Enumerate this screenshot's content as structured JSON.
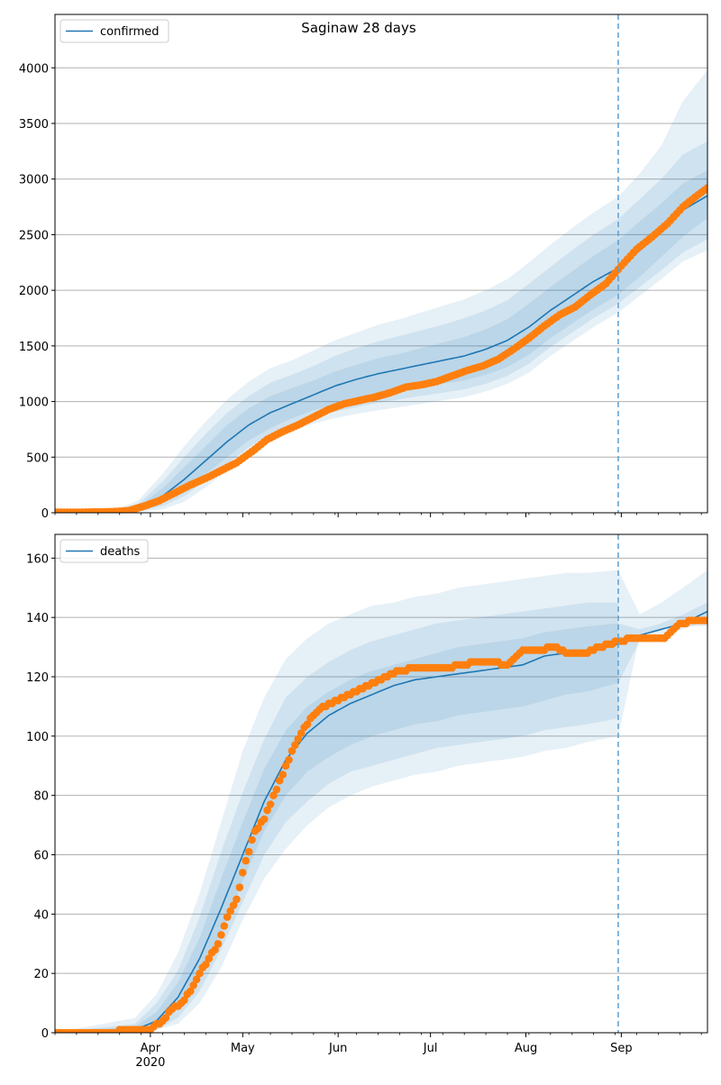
{
  "title": "Saginaw 28 days",
  "colors": {
    "model": "#1f77b4",
    "observed": "#ff7f0e",
    "band": "#1f77b4",
    "grid": "#b0b0b0",
    "forecast_line": "#5a9fd4"
  },
  "x_axis": {
    "range": [
      "2020-03-01",
      "2020-09-29"
    ],
    "month_ticks": [
      {
        "date": "2020-04-01",
        "label": "Apr"
      },
      {
        "date": "2020-05-01",
        "label": "May"
      },
      {
        "date": "2020-06-01",
        "label": "Jun"
      },
      {
        "date": "2020-07-01",
        "label": "Jul"
      },
      {
        "date": "2020-08-01",
        "label": "Aug"
      },
      {
        "date": "2020-09-01",
        "label": "Sep"
      }
    ],
    "year_label": "2020",
    "forecast_start": "2020-08-31"
  },
  "chart_data": [
    {
      "type": "line",
      "legend": "confirmed",
      "legend_position": "top-left",
      "grid": "horizontal",
      "ylim": [
        0,
        4480
      ],
      "yticks": [
        0,
        500,
        1000,
        1500,
        2000,
        2500,
        3000,
        3500,
        4000
      ],
      "model_dates": [
        "2020-03-01",
        "2020-03-20",
        "2020-03-28",
        "2020-04-05",
        "2020-04-12",
        "2020-04-19",
        "2020-04-26",
        "2020-05-03",
        "2020-05-10",
        "2020-05-17",
        "2020-05-24",
        "2020-05-31",
        "2020-06-07",
        "2020-06-14",
        "2020-06-21",
        "2020-06-28",
        "2020-07-05",
        "2020-07-12",
        "2020-07-19",
        "2020-07-26",
        "2020-08-02",
        "2020-08-09",
        "2020-08-16",
        "2020-08-23",
        "2020-08-31",
        "2020-09-07",
        "2020-09-14",
        "2020-09-21",
        "2020-09-29"
      ],
      "model": [
        0,
        5,
        40,
        150,
        300,
        470,
        640,
        790,
        900,
        980,
        1060,
        1140,
        1200,
        1250,
        1290,
        1330,
        1370,
        1410,
        1470,
        1550,
        1670,
        1820,
        1950,
        2080,
        2200,
        2360,
        2520,
        2720,
        2850
      ],
      "bands": [
        {
          "lower": [
            0,
            0,
            20,
            90,
            200,
            350,
            500,
            650,
            760,
            850,
            920,
            980,
            1030,
            1070,
            1100,
            1130,
            1160,
            1190,
            1240,
            1310,
            1420,
            1570,
            1700,
            1830,
            1960,
            2120,
            2300,
            2480,
            2650
          ],
          "upper": [
            0,
            10,
            60,
            220,
            410,
            600,
            790,
            940,
            1050,
            1120,
            1190,
            1270,
            1330,
            1390,
            1430,
            1480,
            1530,
            1580,
            1650,
            1740,
            1880,
            2030,
            2170,
            2310,
            2450,
            2620,
            2780,
            2960,
            3080
          ]
        },
        {
          "lower": [
            0,
            0,
            10,
            60,
            150,
            290,
            440,
            590,
            710,
            800,
            860,
            910,
            950,
            990,
            1020,
            1050,
            1080,
            1110,
            1160,
            1230,
            1340,
            1490,
            1620,
            1750,
            1880,
            2030,
            2180,
            2340,
            2460
          ],
          "upper": [
            0,
            15,
            80,
            280,
            500,
            710,
            900,
            1050,
            1170,
            1240,
            1320,
            1410,
            1480,
            1540,
            1590,
            1640,
            1690,
            1750,
            1820,
            1910,
            2060,
            2210,
            2360,
            2500,
            2640,
            2820,
            3000,
            3220,
            3340
          ]
        },
        {
          "lower": [
            0,
            0,
            5,
            30,
            100,
            230,
            380,
            530,
            650,
            740,
            800,
            850,
            890,
            920,
            950,
            980,
            1010,
            1040,
            1090,
            1160,
            1260,
            1410,
            1540,
            1670,
            1800,
            1950,
            2100,
            2260,
            2360
          ],
          "upper": [
            0,
            20,
            110,
            350,
            600,
            820,
            1020,
            1180,
            1300,
            1370,
            1460,
            1550,
            1620,
            1690,
            1740,
            1800,
            1860,
            1920,
            2000,
            2100,
            2250,
            2410,
            2560,
            2700,
            2840,
            3050,
            3300,
            3700,
            3980
          ]
        }
      ],
      "observed_dates": [
        "2020-03-01",
        "2020-03-10",
        "2020-03-20",
        "2020-03-25",
        "2020-03-30",
        "2020-04-04",
        "2020-04-09",
        "2020-04-14",
        "2020-04-19",
        "2020-04-24",
        "2020-04-29",
        "2020-05-04",
        "2020-05-09",
        "2020-05-14",
        "2020-05-19",
        "2020-05-24",
        "2020-05-29",
        "2020-06-03",
        "2020-06-08",
        "2020-06-13",
        "2020-06-18",
        "2020-06-23",
        "2020-06-28",
        "2020-07-03",
        "2020-07-08",
        "2020-07-13",
        "2020-07-18",
        "2020-07-23",
        "2020-07-28",
        "2020-08-02",
        "2020-08-07",
        "2020-08-12",
        "2020-08-17",
        "2020-08-22",
        "2020-08-27",
        "2020-09-01",
        "2020-09-06",
        "2020-09-11",
        "2020-09-16",
        "2020-09-21",
        "2020-09-26",
        "2020-09-29"
      ],
      "observed": [
        5,
        5,
        10,
        20,
        60,
        110,
        180,
        250,
        310,
        380,
        450,
        550,
        660,
        730,
        790,
        860,
        930,
        980,
        1010,
        1040,
        1080,
        1130,
        1150,
        1180,
        1230,
        1280,
        1320,
        1380,
        1470,
        1570,
        1680,
        1780,
        1850,
        1960,
        2060,
        2220,
        2370,
        2480,
        2600,
        2750,
        2860,
        2920
      ]
    },
    {
      "type": "line",
      "legend": "deaths",
      "legend_position": "top-left",
      "grid": "horizontal",
      "ylim": [
        0,
        168
      ],
      "yticks": [
        0,
        20,
        40,
        60,
        80,
        100,
        120,
        140,
        160
      ],
      "model_dates": [
        "2020-03-01",
        "2020-03-27",
        "2020-04-03",
        "2020-04-10",
        "2020-04-17",
        "2020-04-24",
        "2020-05-01",
        "2020-05-08",
        "2020-05-15",
        "2020-05-22",
        "2020-05-29",
        "2020-06-05",
        "2020-06-12",
        "2020-06-19",
        "2020-06-26",
        "2020-07-03",
        "2020-07-10",
        "2020-07-17",
        "2020-07-24",
        "2020-07-31",
        "2020-08-07",
        "2020-08-14",
        "2020-08-21",
        "2020-08-31",
        "2020-09-07",
        "2020-09-14",
        "2020-09-21",
        "2020-09-29"
      ],
      "model": [
        0,
        1,
        4,
        12,
        25,
        42,
        60,
        78,
        92,
        101,
        107,
        111,
        114,
        117,
        119,
        120,
        121,
        122,
        123,
        124,
        127,
        128,
        129,
        131,
        134,
        136,
        138,
        142
      ],
      "bands": [
        {
          "lower": [
            0,
            0,
            2,
            8,
            19,
            34,
            51,
            68,
            80,
            88,
            93,
            97,
            100,
            102,
            104,
            105,
            107,
            108,
            109,
            110,
            112,
            114,
            115,
            118,
            132,
            134,
            136,
            139
          ],
          "upper": [
            0,
            2,
            7,
            17,
            32,
            52,
            71,
            89,
            102,
            110,
            115,
            119,
            122,
            124,
            126,
            128,
            130,
            131,
            132,
            133,
            135,
            136,
            137,
            138,
            136,
            138,
            141,
            145
          ]
        },
        {
          "lower": [
            0,
            0,
            1,
            5,
            14,
            28,
            44,
            60,
            71,
            78,
            84,
            88,
            90,
            92,
            94,
            96,
            97,
            98,
            99,
            100,
            102,
            103,
            104,
            106,
            133,
            135,
            137,
            138
          ],
          "upper": [
            0,
            3,
            10,
            21,
            39,
            61,
            81,
            99,
            113,
            120,
            125,
            129,
            132,
            134,
            136,
            138,
            139,
            140,
            141,
            142,
            143,
            144,
            145,
            145,
            139,
            142,
            146,
            150
          ],
          "stop": "2020-08-31"
        },
        {
          "lower": [
            0,
            0,
            1,
            3,
            10,
            22,
            38,
            52,
            62,
            70,
            76,
            80,
            83,
            85,
            87,
            88,
            90,
            91,
            92,
            93,
            95,
            96,
            98,
            100,
            134,
            136,
            137,
            137
          ],
          "upper": [
            0,
            5,
            13,
            27,
            47,
            71,
            95,
            113,
            126,
            133,
            138,
            141,
            144,
            145,
            147,
            148,
            150,
            151,
            152,
            153,
            154,
            155,
            155,
            156,
            141,
            145,
            150,
            156
          ]
        }
      ],
      "observed_dates": [
        "2020-03-01",
        "2020-03-15",
        "2020-03-28",
        "2020-04-01",
        "2020-04-05",
        "2020-04-08",
        "2020-04-11",
        "2020-04-14",
        "2020-04-17",
        "2020-04-20",
        "2020-04-23",
        "2020-04-26",
        "2020-04-29",
        "2020-05-02",
        "2020-05-05",
        "2020-05-08",
        "2020-05-11",
        "2020-05-14",
        "2020-05-17",
        "2020-05-20",
        "2020-05-23",
        "2020-05-27",
        "2020-06-01",
        "2020-06-06",
        "2020-06-11",
        "2020-06-16",
        "2020-06-21",
        "2020-06-26",
        "2020-07-01",
        "2020-07-06",
        "2020-07-11",
        "2020-07-16",
        "2020-07-21",
        "2020-07-26",
        "2020-07-31",
        "2020-08-05",
        "2020-08-10",
        "2020-08-15",
        "2020-08-20",
        "2020-08-25",
        "2020-08-31",
        "2020-09-05",
        "2020-09-10",
        "2020-09-15",
        "2020-09-20",
        "2020-09-25",
        "2020-09-29"
      ],
      "observed": [
        0,
        0,
        1,
        1,
        4,
        8,
        10,
        14,
        20,
        25,
        30,
        39,
        45,
        58,
        68,
        72,
        80,
        87,
        95,
        101,
        106,
        110,
        112,
        115,
        117,
        120,
        122,
        123,
        123,
        123,
        124,
        125,
        125,
        124,
        129,
        129,
        130,
        128,
        128,
        130,
        132,
        133,
        133,
        133,
        138,
        139,
        139
      ]
    }
  ]
}
